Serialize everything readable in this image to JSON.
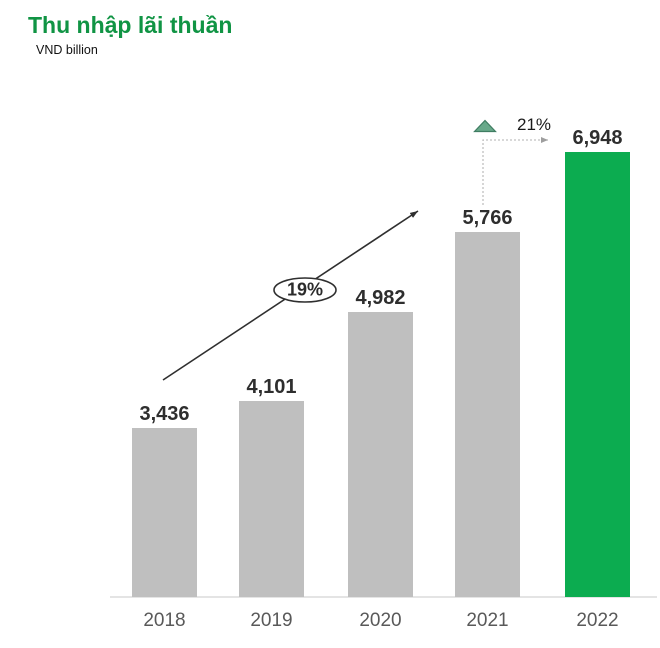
{
  "header": {
    "title": "Thu nhập lãi thuần",
    "subtitle": "VND billion"
  },
  "annotations": {
    "cagr_label": "19%",
    "yoy_label": "21%"
  },
  "chart_data": {
    "type": "bar",
    "title": "Thu nhập lãi thuần",
    "ylabel": "VND billion",
    "xlabel": "",
    "categories": [
      "2018",
      "2019",
      "2020",
      "2021",
      "2022"
    ],
    "values": [
      3436,
      4101,
      4982,
      5766,
      6948
    ],
    "value_labels": [
      "3,436",
      "4,101",
      "4,982",
      "5,766",
      "6,948"
    ],
    "highlight_category": "2022",
    "annotations": [
      {
        "type": "trend-arrow",
        "label": "19%",
        "from": "2018",
        "to": "2021"
      },
      {
        "type": "yoy-change",
        "label": "21%",
        "from": "2021",
        "to": "2022",
        "direction": "up"
      }
    ],
    "axes": {
      "x_ticks": [
        "2018",
        "2019",
        "2020",
        "2021",
        "2022"
      ],
      "y_axis_visible": false,
      "grid": false
    },
    "legend": false,
    "colors": {
      "bar_default": "#BFBFBF",
      "bar_highlight": "#0CAC50"
    }
  },
  "colors": {
    "title_green": "#109444",
    "bar_gray": "#BFBFBF",
    "bar_green": "#0CAC50",
    "triangle_fill": "#68A98A",
    "triangle_stroke": "#3F7D62",
    "value_label": "#2E2E2E",
    "year_label": "#595959",
    "arrow_dark": "#2F2F2F",
    "connector_gray": "#C0C0C0",
    "axis_gray": "#E4E4E4"
  }
}
